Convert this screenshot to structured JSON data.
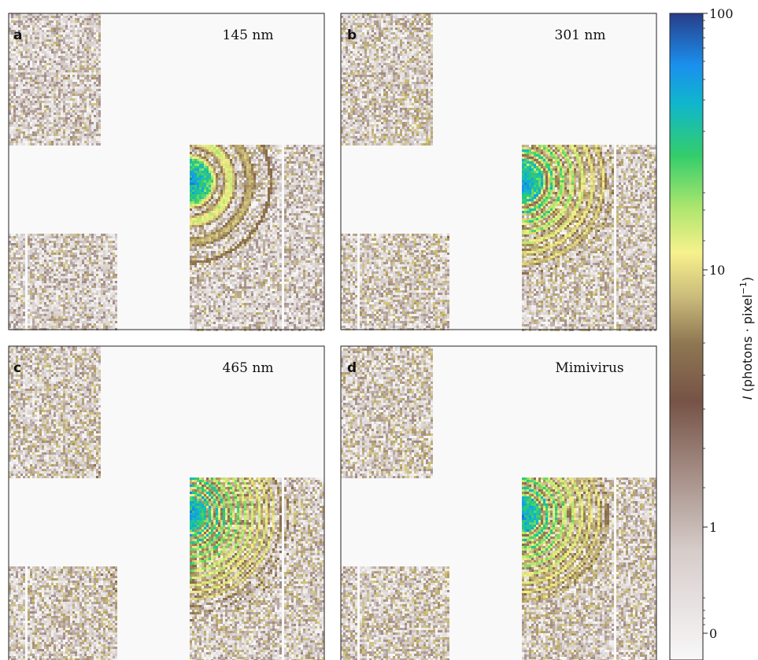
{
  "chart_data": [
    {
      "type": "heatmap",
      "panel_label": "a",
      "annotation": "145 nm",
      "ring_spacing": 26,
      "fringes": 3,
      "scatter_level": 0.25
    },
    {
      "type": "heatmap",
      "panel_label": "b",
      "annotation": "301 nm",
      "ring_spacing": 13,
      "fringes": 8,
      "scatter_level": 0.55
    },
    {
      "type": "heatmap",
      "panel_label": "c",
      "annotation": "465 nm",
      "ring_spacing": 9,
      "fringes": 10,
      "scatter_level": 0.5
    },
    {
      "type": "heatmap",
      "panel_label": "d",
      "annotation": "Mimivirus",
      "ring_spacing": 11,
      "fringes": 8,
      "scatter_level": 0.6
    }
  ],
  "colorbar": {
    "label_prefix": "I",
    "label": "(photons · pixel",
    "label_exp": "−1",
    "label_suffix": ")",
    "scale": "log",
    "ticks": [
      "100",
      "10",
      "1",
      "0"
    ],
    "colormap": "terrain_r",
    "colors": [
      "#f8f8f8",
      "#d4cbc8",
      "#7a5a50",
      "#8c6f4c",
      "#c2b376",
      "#f7f08a",
      "#b2e86e",
      "#33cc6a",
      "#0fb9c4",
      "#1a8ff0",
      "#28408a"
    ]
  },
  "background_color": "#f9f9f9"
}
